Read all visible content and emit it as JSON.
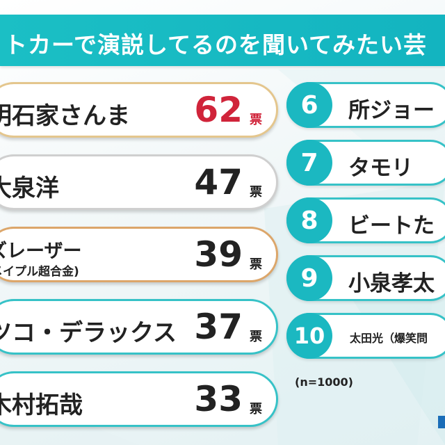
{
  "title": "トカーで演説してるのを聞いてみたい芸",
  "left_ranks": [
    {
      "name": "明石家さんま",
      "sub": "",
      "count": "62",
      "unit": "票"
    },
    {
      "name": "大泉洋",
      "sub": "",
      "count": "47",
      "unit": "票"
    },
    {
      "name": "ズレーザー",
      "sub": "メイプル超合金)",
      "count": "39",
      "unit": "票"
    },
    {
      "name": "ツコ・デラックス",
      "sub": "",
      "count": "37",
      "unit": "票"
    },
    {
      "name": "木村拓哉",
      "sub": "",
      "count": "33",
      "unit": "票"
    }
  ],
  "right_ranks": [
    {
      "rank": "6",
      "name": "所ジョー"
    },
    {
      "rank": "7",
      "name": "タモリ"
    },
    {
      "rank": "8",
      "name": "ビートた"
    },
    {
      "rank": "9",
      "name": "小泉孝太"
    },
    {
      "rank": "10",
      "name": "太田光（爆笑問"
    }
  ],
  "footnote": "(n=1000)",
  "colors": {
    "accent": "#1bb8c1",
    "top_count": "#d0243a",
    "gold_border": "#e4c68d",
    "silver_border": "#cfcfcf",
    "bronze_border": "#dca66a"
  }
}
